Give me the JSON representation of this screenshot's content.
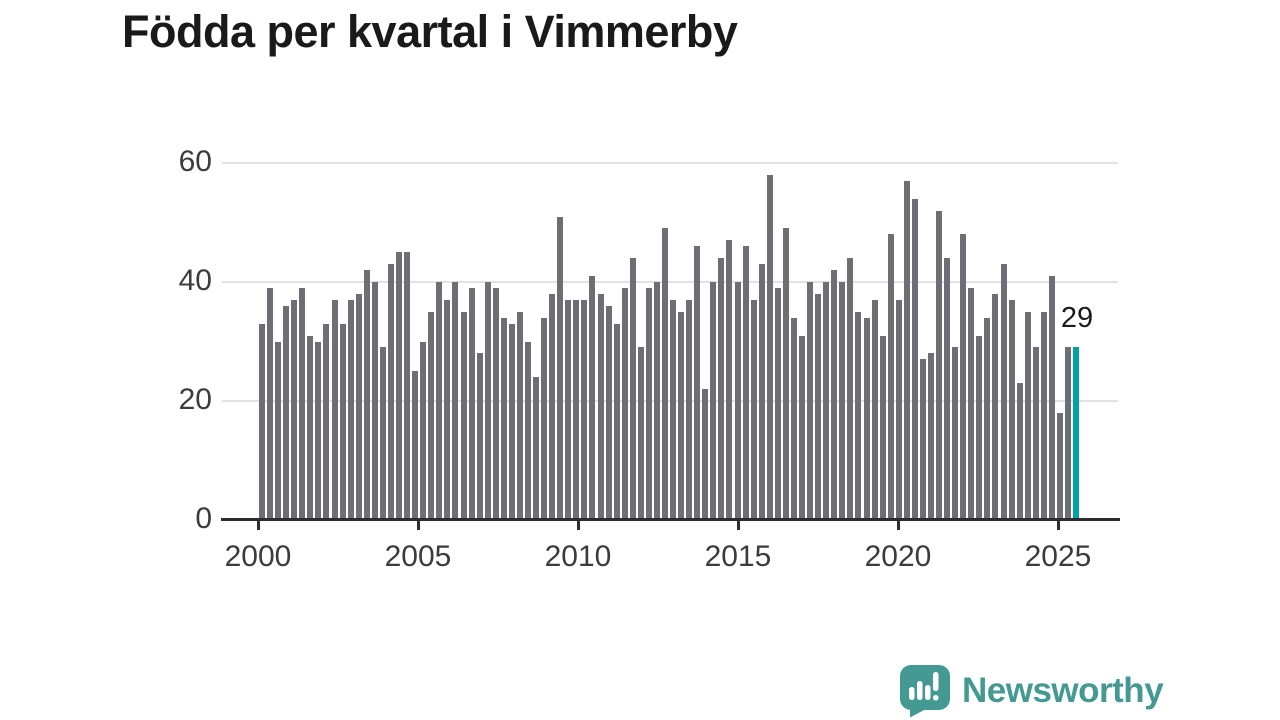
{
  "title": "Födda per kvartal i Vimmerby",
  "annotation": {
    "last_value_label": "29"
  },
  "branding": {
    "name": "Newsworthy",
    "icon": "newsworthy-chart-bubble-icon",
    "color": "#449a92"
  },
  "colors": {
    "bar": "#6e6e74",
    "highlight": "#00a2a2",
    "axis": "#2d2d2d",
    "grid": "#e2e2e2",
    "text": "#3c3c3c",
    "title": "#1a1a1a"
  },
  "chart_data": {
    "type": "bar",
    "title": "Födda per kvartal i Vimmerby",
    "xlabel": "",
    "ylabel": "",
    "ylim": [
      0,
      60
    ],
    "y_ticks": [
      0,
      20,
      40,
      60
    ],
    "x_tick_labels": [
      "2000",
      "2005",
      "2010",
      "2015",
      "2020",
      "2025"
    ],
    "grid": "horizontal",
    "legend": "none",
    "highlight": {
      "quarter": "2025 Q2",
      "value": 29,
      "label": "29"
    },
    "quarters": [
      "2000Q1",
      "2000Q2",
      "2000Q3",
      "2000Q4",
      "2001Q1",
      "2001Q2",
      "2001Q3",
      "2001Q4",
      "2002Q1",
      "2002Q2",
      "2002Q3",
      "2002Q4",
      "2003Q1",
      "2003Q2",
      "2003Q3",
      "2003Q4",
      "2004Q1",
      "2004Q2",
      "2004Q3",
      "2004Q4",
      "2005Q1",
      "2005Q2",
      "2005Q3",
      "2005Q4",
      "2006Q1",
      "2006Q2",
      "2006Q3",
      "2006Q4",
      "2007Q1",
      "2007Q2",
      "2007Q3",
      "2007Q4",
      "2008Q1",
      "2008Q2",
      "2008Q3",
      "2008Q4",
      "2009Q1",
      "2009Q2",
      "2009Q3",
      "2009Q4",
      "2010Q1",
      "2010Q2",
      "2010Q3",
      "2010Q4",
      "2011Q1",
      "2011Q2",
      "2011Q3",
      "2011Q4",
      "2012Q1",
      "2012Q2",
      "2012Q3",
      "2012Q4",
      "2013Q1",
      "2013Q2",
      "2013Q3",
      "2013Q4",
      "2014Q1",
      "2014Q2",
      "2014Q3",
      "2014Q4",
      "2015Q1",
      "2015Q2",
      "2015Q3",
      "2015Q4",
      "2016Q1",
      "2016Q2",
      "2016Q3",
      "2016Q4",
      "2017Q1",
      "2017Q2",
      "2017Q3",
      "2017Q4",
      "2018Q1",
      "2018Q2",
      "2018Q3",
      "2018Q4",
      "2019Q1",
      "2019Q2",
      "2019Q3",
      "2019Q4",
      "2020Q1",
      "2020Q2",
      "2020Q3",
      "2020Q4",
      "2021Q1",
      "2021Q2",
      "2021Q3",
      "2021Q4",
      "2022Q1",
      "2022Q2",
      "2022Q3",
      "2022Q4",
      "2023Q1",
      "2023Q2",
      "2023Q3",
      "2023Q4",
      "2024Q1",
      "2024Q2",
      "2024Q3",
      "2024Q4",
      "2025Q1",
      "2025Q2"
    ],
    "values": [
      33,
      39,
      30,
      36,
      37,
      39,
      31,
      30,
      33,
      37,
      33,
      37,
      38,
      42,
      40,
      29,
      43,
      45,
      45,
      25,
      30,
      35,
      40,
      37,
      40,
      35,
      39,
      28,
      40,
      39,
      34,
      33,
      35,
      30,
      24,
      34,
      38,
      51,
      37,
      37,
      37,
      41,
      38,
      36,
      33,
      39,
      44,
      29,
      39,
      40,
      49,
      37,
      35,
      37,
      46,
      22,
      40,
      44,
      47,
      40,
      46,
      37,
      43,
      58,
      39,
      49,
      34,
      31,
      40,
      38,
      40,
      42,
      40,
      44,
      35,
      34,
      37,
      31,
      48,
      37,
      57,
      54,
      27,
      28,
      52,
      44,
      29,
      48,
      39,
      31,
      34,
      38,
      43,
      37,
      23,
      35,
      29,
      35,
      41,
      18,
      29,
      29
    ]
  }
}
